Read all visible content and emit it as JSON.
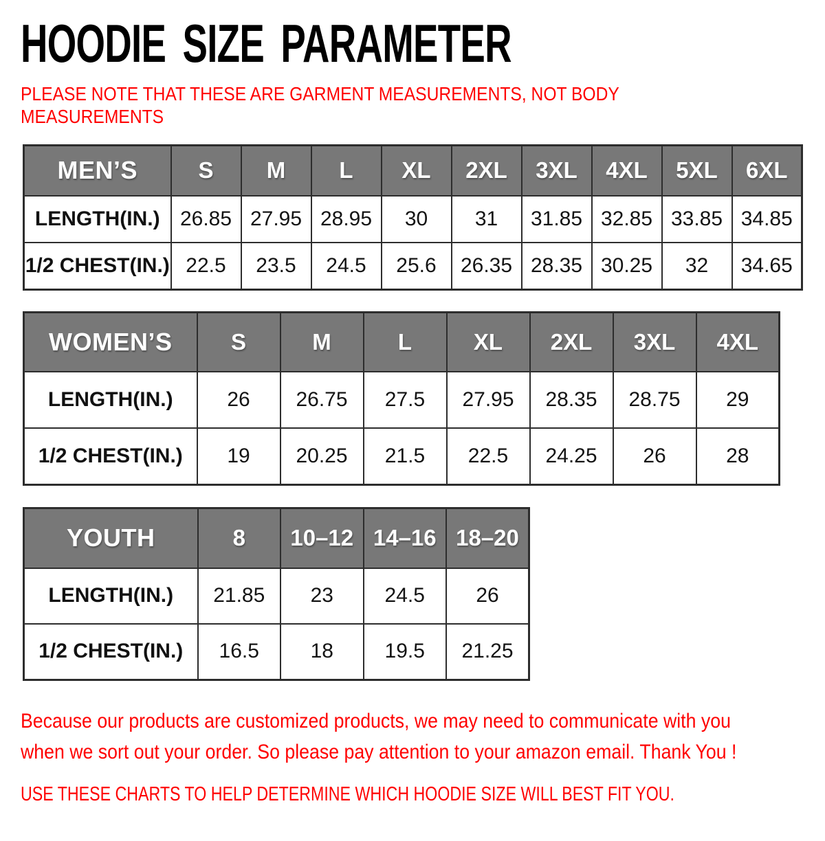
{
  "title": "HOODIE SIZE PARAMETER",
  "note": {
    "line1": "PLEASE NOTE THAT THESE ARE GARMENT MEASUREMENTS, NOT BODY",
    "line2": "MEASUREMENTS"
  },
  "tables": [
    {
      "name": "mens",
      "header": [
        "MEN’S",
        "S",
        "M",
        "L",
        "XL",
        "2XL",
        "3XL",
        "4XL",
        "5XL",
        "6XL"
      ],
      "rows": [
        [
          "LENGTH(IN.)",
          "26.85",
          "27.95",
          "28.95",
          "30",
          "31",
          "31.85",
          "32.85",
          "33.85",
          "34.85"
        ],
        [
          "1/2 CHEST(IN.)",
          "22.5",
          "23.5",
          "24.5",
          "25.6",
          "26.35",
          "28.35",
          "30.25",
          "32",
          "34.65"
        ]
      ]
    },
    {
      "name": "womens",
      "header": [
        "WOMEN’S",
        "S",
        "M",
        "L",
        "XL",
        "2XL",
        "3XL",
        "4XL"
      ],
      "rows": [
        [
          "LENGTH(IN.)",
          "26",
          "26.75",
          "27.5",
          "27.95",
          "28.35",
          "28.75",
          "29"
        ],
        [
          "1/2 CHEST(IN.)",
          "19",
          "20.25",
          "21.5",
          "22.5",
          "24.25",
          "26",
          "28"
        ]
      ]
    },
    {
      "name": "youth",
      "header": [
        "YOUTH",
        "8",
        "10–12",
        "14–16",
        "18–20"
      ],
      "rows": [
        [
          "LENGTH(IN.)",
          "21.85",
          "23",
          "24.5",
          "26"
        ],
        [
          "1/2 CHEST(IN.)",
          "16.5",
          "18",
          "19.5",
          "21.25"
        ]
      ]
    }
  ],
  "footer": {
    "line1": "Because our products are customized products, we may need to communicate with you",
    "line2": "when we sort out your order. So please pay attention to your amazon email. Thank You !",
    "line3": "USE THESE CHARTS TO HELP DETERMINE WHICH HOODIE SIZE WILL BEST FIT YOU."
  },
  "colors": {
    "header_bg": "#787878",
    "header_text": "#ffffff",
    "accent_red": "#ff0000",
    "border": "#2d2d2d",
    "title_black": "#000000",
    "background": "#ffffff"
  }
}
